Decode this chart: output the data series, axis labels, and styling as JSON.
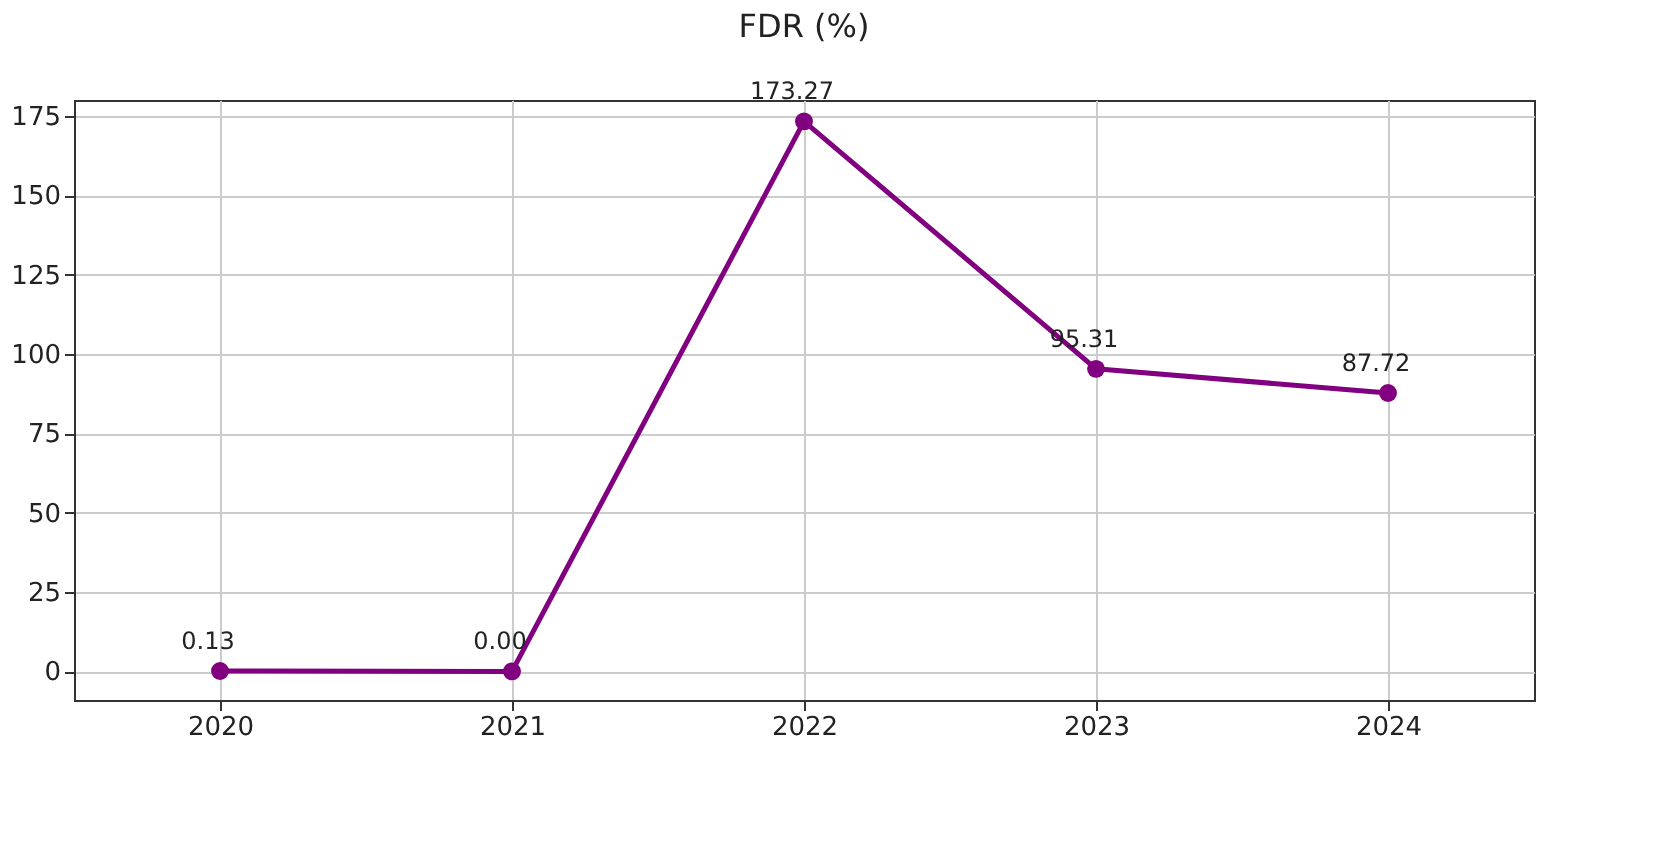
{
  "chart_data": {
    "type": "line",
    "title": "FDR (%)",
    "categories": [
      "2020",
      "2021",
      "2022",
      "2023",
      "2024"
    ],
    "series": [
      {
        "color": "#800080",
        "values": [
          0.13,
          0.0,
          173.27,
          95.31,
          87.72
        ],
        "value_labels": [
          "0.13",
          "0.00",
          "173.27",
          "95.31",
          "87.72"
        ]
      }
    ],
    "ylim": [
      -9,
      180
    ],
    "yticks": [
      0,
      25,
      50,
      75,
      100,
      125,
      150,
      175
    ],
    "grid": true,
    "marker": "circle",
    "line_style": "solid"
  }
}
